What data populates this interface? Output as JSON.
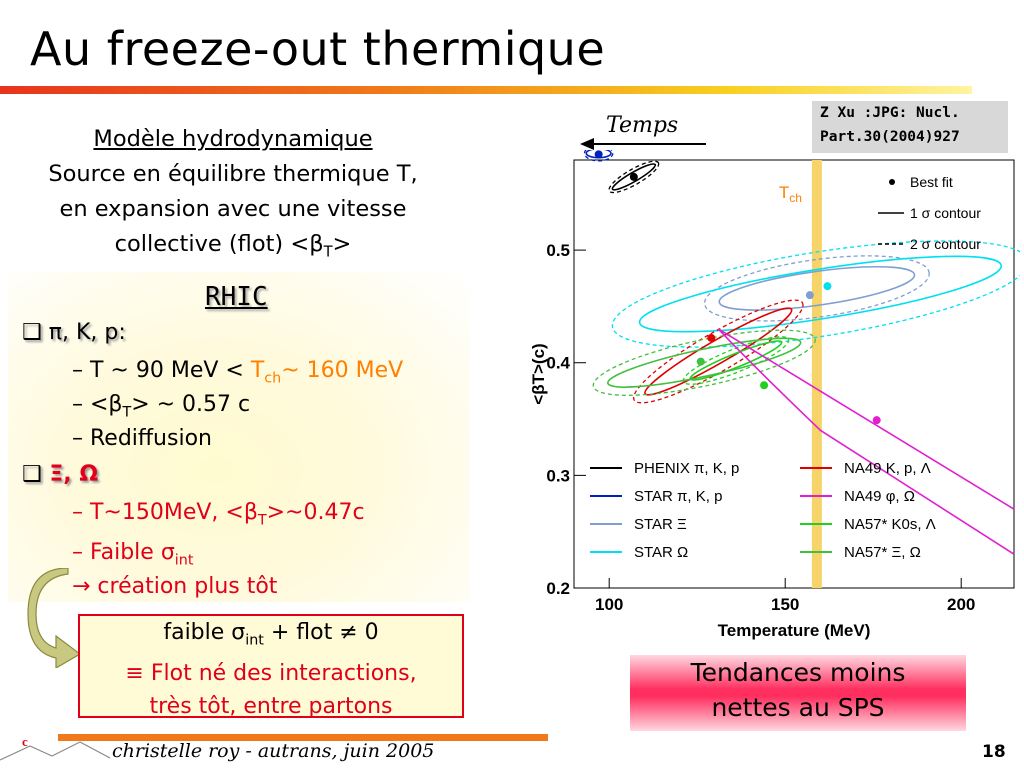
{
  "slide": {
    "title": "Au freeze-out thermique",
    "page_number": "18",
    "footer": "christelle roy - autrans, juin 2005"
  },
  "hydro": {
    "heading": "Modèle hydrodynamique",
    "line1": "Source en équilibre thermique T,",
    "line2": "en expansion avec une vitesse",
    "line3_pre": "collective (flot) <β",
    "line3_sub": "T",
    "line3_post": ">"
  },
  "rhic": {
    "heading": "RHIC",
    "bullet1": "π, K, p:",
    "b1_l1_pre": "– T ~ 90 MeV < ",
    "b1_l1_t": "T",
    "b1_l1_sub": "ch",
    "b1_l1_post": "~ 160 MeV",
    "b1_l2_pre": "– <β",
    "b1_l2_sub": "T",
    "b1_l2_post": "> ~ 0.57 c",
    "b1_l3": "– Rediffusion",
    "bullet2": "Ξ, Ω",
    "b2_l1_pre": "– T~150MeV, <β",
    "b2_l1_sub": "T",
    "b2_l1_post": ">~0.47c",
    "b2_l2_pre": "– Faible σ",
    "b2_l2_sub": "int",
    "b2_l3": "→  création plus tôt"
  },
  "box": {
    "l1_pre": "faible  σ",
    "l1_sub": "int",
    "l1_post": " + flot ≠ 0",
    "l2": "≡ Flot né des interactions,",
    "l3": "très tôt, entre partons"
  },
  "temps_label": "Temps",
  "reference": {
    "l1": "Z Xu :JPG: Nucl.",
    "l2": "Part.30(2004)927"
  },
  "tendances": {
    "l1": "Tendances moins",
    "l2": "nettes au SPS"
  },
  "colors": {
    "orange": "#ff7f00",
    "red": "#e0001a",
    "tch_band": "#f7d46a"
  },
  "chart_data": {
    "type": "scatter",
    "xlabel": "Temperature (MeV)",
    "ylabel": "<βT>(c)",
    "xlim": [
      90,
      215
    ],
    "ylim": [
      0.2,
      0.58
    ],
    "x_ticks": [
      "100",
      "150",
      "200"
    ],
    "y_ticks": [
      "0.2",
      "0.3",
      "0.4",
      "0.5"
    ],
    "tch_label": "T",
    "tch_sub": "ch",
    "tch_value": 159,
    "legend_symbols": [
      {
        "label": "Best fit",
        "style": "dot"
      },
      {
        "label": "1 σ contour",
        "style": "solid"
      },
      {
        "label": "2 σ contour",
        "style": "dashed"
      }
    ],
    "series": [
      {
        "name": "PHENIX  π, K, p",
        "color": "#000000",
        "best_fit": [
          107,
          0.565
        ],
        "contour": {
          "cx": 107,
          "cy": 0.565,
          "rx": 7,
          "ry": 0.004,
          "rot": -30
        }
      },
      {
        "name": "STAR  π, K, p",
        "color": "#0020c0",
        "best_fit": [
          97,
          0.585
        ],
        "contour": {
          "cx": 97,
          "cy": 0.586,
          "rx": 3.5,
          "ry": 0.004,
          "rot": 0
        }
      },
      {
        "name": "STAR  Ξ",
        "color": "#7f9fd0",
        "best_fit": [
          157,
          0.46
        ],
        "contour": {
          "cx": 159,
          "cy": 0.466,
          "rx": 28,
          "ry": 0.015,
          "rot": -8
        }
      },
      {
        "name": "STAR  Ω",
        "color": "#00e0f0",
        "best_fit": [
          162,
          0.468
        ],
        "contour": {
          "cx": 160,
          "cy": 0.461,
          "rx": 52,
          "ry": 0.022,
          "rot": -9
        }
      },
      {
        "name": "NA49 K, p,  Λ",
        "color": "#e00000",
        "best_fit": [
          129,
          0.422
        ],
        "contour": {
          "cx": 131,
          "cy": 0.41,
          "rx": 24,
          "ry": 0.01,
          "rot": -30
        }
      },
      {
        "name": "NA49  φ,  Ω",
        "color": "#e020d0",
        "best_fit": [
          176,
          0.349
        ],
        "contour": null
      },
      {
        "name": "NA57* K0s, Λ",
        "color": "#20d020",
        "best_fit": [
          144,
          0.38
        ],
        "contour": {
          "cx": 136,
          "cy": 0.402,
          "rx": 14,
          "ry": 0.006,
          "rot": -22
        }
      },
      {
        "name": "NA57* Ξ, Ω",
        "color": "#40c040",
        "best_fit": [
          126,
          0.401
        ],
        "contour": {
          "cx": 127,
          "cy": 0.4,
          "rx": 28,
          "ry": 0.012,
          "rot": -12
        }
      }
    ]
  }
}
